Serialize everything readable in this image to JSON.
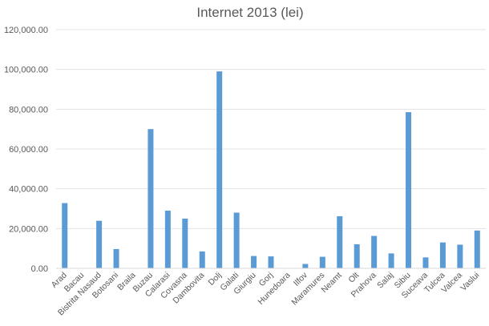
{
  "chart_data": {
    "type": "bar",
    "title": "Internet 2013 (lei)",
    "xlabel": "",
    "ylabel": "",
    "ylim": [
      0,
      120000
    ],
    "y_ticks": [
      "0.00",
      "20,000.00",
      "40,000.00",
      "60,000.00",
      "80,000.00",
      "100,000.00",
      "120,000.00"
    ],
    "y_tick_values": [
      0,
      20000,
      40000,
      60000,
      80000,
      100000,
      120000
    ],
    "grid": true,
    "legend": "none",
    "bar_color": "#5b9bd5",
    "categories": [
      "Arad",
      "Bacau",
      "Bistrita Nasaud",
      "Botosani",
      "Braila",
      "Buzau",
      "Calarasi",
      "Covasna",
      "Dambovita",
      "Dolj",
      "Galati",
      "Giurgiu",
      "Gorj",
      "Hunedoara",
      "Ilfov",
      "Maramures",
      "Neamt",
      "Olt",
      "Prahova",
      "Salaj",
      "Sibiu",
      "Suceava",
      "Tulcea",
      "Valcea",
      "Vaslui"
    ],
    "values": [
      32800,
      0,
      23900,
      9700,
      0,
      70000,
      29000,
      25000,
      8500,
      99000,
      28000,
      6200,
      6000,
      0,
      2200,
      5800,
      26200,
      12100,
      16300,
      7500,
      78500,
      5500,
      13000,
      11900,
      19000
    ]
  }
}
